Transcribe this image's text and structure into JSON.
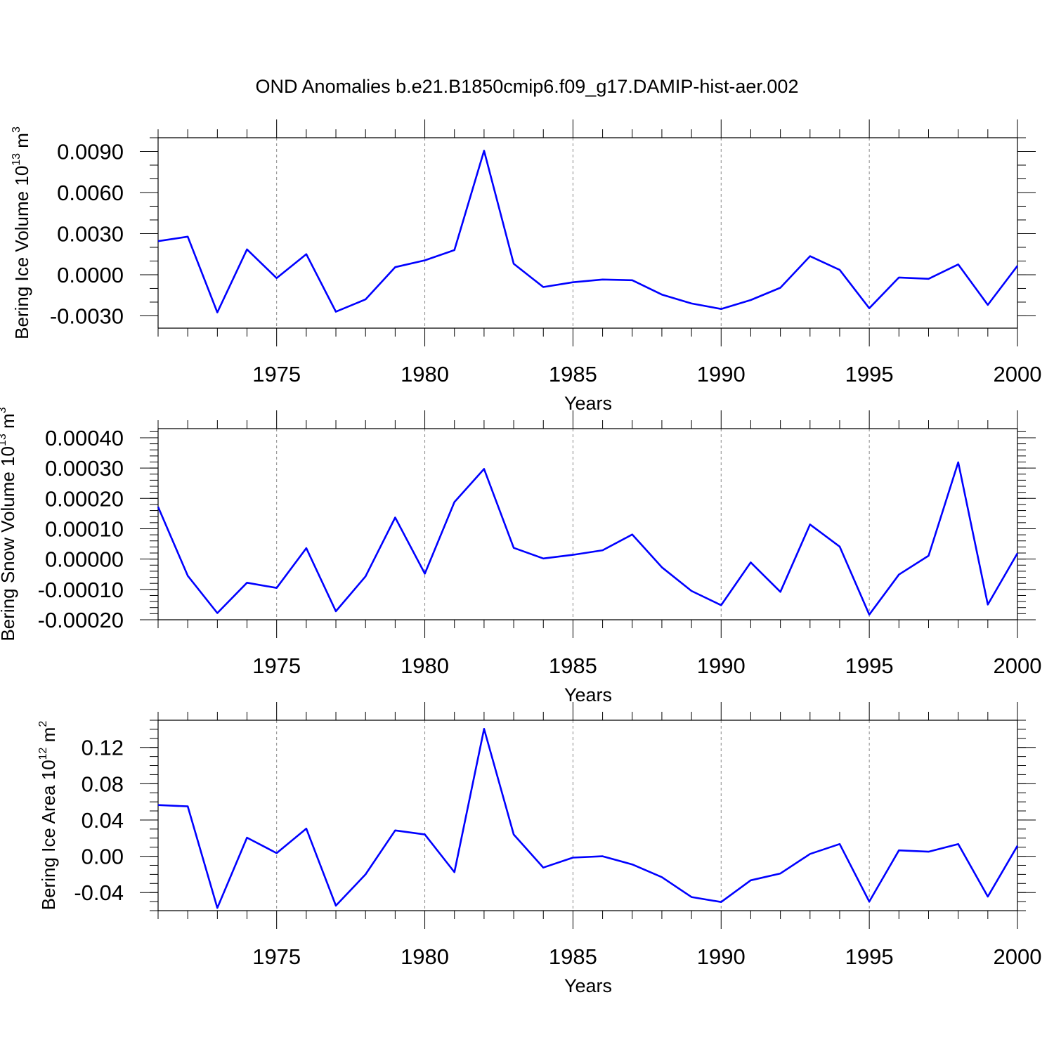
{
  "title": "OND Anomalies b.e21.B1850cmip6.f09_g17.DAMIP-hist-aer.002",
  "chart_data": [
    {
      "type": "line",
      "xlabel": "Years",
      "ylabel": {
        "text": "Bering Ice Volume 10",
        "sup": "13",
        "unit": " m",
        "unit_sup": "3"
      },
      "xlim": [
        1971,
        2000
      ],
      "ylim": [
        -0.0039,
        0.01
      ],
      "xticks": [
        "1975",
        "1980",
        "1985",
        "1990",
        "1995",
        "2000"
      ],
      "yticks": [
        -0.003,
        0.0,
        0.003,
        0.006,
        0.009
      ],
      "ytick_labels": [
        "-0.0030",
        "0.0000",
        "0.0030",
        "0.0060",
        "0.0090"
      ],
      "y_minor_step": 0.001,
      "color": "#0000ff",
      "x": [
        1971,
        1972,
        1973,
        1974,
        1975,
        1976,
        1977,
        1978,
        1979,
        1980,
        1981,
        1982,
        1983,
        1984,
        1985,
        1986,
        1987,
        1988,
        1989,
        1990,
        1991,
        1992,
        1993,
        1994,
        1995,
        1996,
        1997,
        1998,
        1999,
        2000
      ],
      "values": [
        0.00245,
        0.00278,
        -0.00275,
        0.00185,
        -0.00025,
        0.0015,
        -0.0027,
        -0.0018,
        0.00055,
        0.00105,
        0.0018,
        0.00905,
        0.0008,
        -0.0009,
        -0.00055,
        -0.00035,
        -0.0004,
        -0.00145,
        -0.0021,
        -0.0025,
        -0.00185,
        -0.00095,
        0.00135,
        0.00035,
        -0.00245,
        -0.0002,
        -0.0003,
        0.00075,
        -0.0022,
        0.00065
      ]
    },
    {
      "type": "line",
      "xlabel": "Years",
      "ylabel": {
        "text": "Bering Snow Volume 10",
        "sup": "13",
        "unit": " m",
        "unit_sup": "3"
      },
      "xlim": [
        1971,
        2000
      ],
      "ylim": [
        -0.0002,
        0.00043
      ],
      "xticks": [
        "1975",
        "1980",
        "1985",
        "1990",
        "1995",
        "2000"
      ],
      "yticks": [
        -0.0002,
        -0.0001,
        0.0,
        0.0001,
        0.0002,
        0.0003,
        0.0004
      ],
      "ytick_labels": [
        "-0.00020",
        "-0.00010",
        "0.00000",
        "0.00010",
        "0.00020",
        "0.00030",
        "0.00040"
      ],
      "y_minor_step": 2e-05,
      "color": "#0000ff",
      "x": [
        1971,
        1972,
        1973,
        1974,
        1975,
        1976,
        1977,
        1978,
        1979,
        1980,
        1981,
        1982,
        1983,
        1984,
        1985,
        1986,
        1987,
        1988,
        1989,
        1990,
        1991,
        1992,
        1993,
        1994,
        1995,
        1996,
        1997,
        1998,
        1999,
        2000
      ],
      "values": [
        0.000172,
        -5.5e-05,
        -0.000178,
        -7.8e-05,
        -9.5e-05,
        3.6e-05,
        -0.000172,
        -5.7e-05,
        0.000137,
        -4.8e-05,
        0.000188,
        0.000297,
        3.7e-05,
        2e-06,
        1.4e-05,
        2.9e-05,
        8.1e-05,
        -2.7e-05,
        -0.000105,
        -0.000152,
        -1.1e-05,
        -0.000108,
        0.000114,
        4.1e-05,
        -0.000183,
        -5.1e-05,
        1.1e-05,
        0.000319,
        -0.00015,
        1.9e-05
      ]
    },
    {
      "type": "line",
      "xlabel": "Years",
      "ylabel": {
        "text": "Bering Ice Area 10",
        "sup": "12",
        "unit": " m",
        "unit_sup": "2"
      },
      "xlim": [
        1971,
        2000
      ],
      "ylim": [
        -0.06,
        0.15
      ],
      "xticks": [
        "1975",
        "1980",
        "1985",
        "1990",
        "1995",
        "2000"
      ],
      "yticks": [
        -0.04,
        0.0,
        0.04,
        0.08,
        0.12
      ],
      "ytick_labels": [
        "-0.04",
        "0.00",
        "0.04",
        "0.08",
        "0.12"
      ],
      "y_minor_step": 0.01,
      "color": "#0000ff",
      "x": [
        1971,
        1972,
        1973,
        1974,
        1975,
        1976,
        1977,
        1978,
        1979,
        1980,
        1981,
        1982,
        1983,
        1984,
        1985,
        1986,
        1987,
        1988,
        1989,
        1990,
        1991,
        1992,
        1993,
        1994,
        1995,
        1996,
        1997,
        1998,
        1999,
        2000
      ],
      "values": [
        0.0565,
        0.055,
        -0.057,
        0.0205,
        0.0035,
        0.0305,
        -0.0545,
        -0.02,
        0.0285,
        0.024,
        -0.0175,
        0.1405,
        0.024,
        -0.0125,
        -0.0015,
        0.0,
        -0.009,
        -0.023,
        -0.045,
        -0.0505,
        -0.0265,
        -0.019,
        0.0025,
        0.0135,
        -0.05,
        0.0065,
        0.005,
        0.0135,
        -0.0445,
        0.0115
      ]
    }
  ]
}
